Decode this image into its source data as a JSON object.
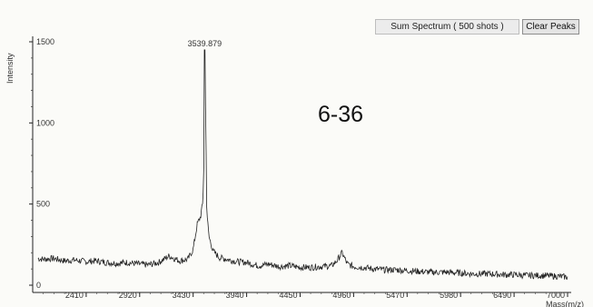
{
  "toolbar": {
    "sum_spectrum_label": "Sum Spectrum ( 500 shots )",
    "clear_peaks_label": "Clear Peaks"
  },
  "annotation": "6-36",
  "chart_data": {
    "type": "line",
    "ylabel": "Intensity",
    "xlabel": "Mass(m/z)",
    "xlim": [
      1900,
      7000
    ],
    "ylim": [
      0,
      1500
    ],
    "x_ticks": [
      "2410",
      "2920",
      "3430",
      "3940",
      "4450",
      "4960",
      "5470",
      "5980",
      "6490",
      "7000"
    ],
    "y_ticks": [
      "0",
      "500",
      "1000",
      "1500"
    ],
    "peak_label": "3539.879",
    "series": [
      {
        "x": [
          1900,
          2000,
          2100,
          2200,
          2300,
          2410,
          2500,
          2600,
          2700,
          2800,
          2920,
          3000,
          3100,
          3200,
          3300,
          3380,
          3430,
          3470,
          3500,
          3520,
          3530,
          3539.879,
          3550,
          3560,
          3580,
          3620,
          3680,
          3750,
          3850,
          3940,
          4050,
          4150,
          4250,
          4350,
          4450,
          4550,
          4650,
          4750,
          4800,
          4850,
          4900,
          4960,
          5050,
          5150,
          5250,
          5350,
          5470,
          5580,
          5700,
          5850,
          5980,
          6100,
          6250,
          6400,
          6490,
          6600,
          6750,
          6900,
          7000
        ],
        "y": [
          170,
          160,
          165,
          150,
          155,
          145,
          150,
          140,
          135,
          140,
          130,
          125,
          140,
          180,
          150,
          160,
          220,
          380,
          420,
          500,
          650,
          1450,
          1020,
          460,
          300,
          210,
          170,
          160,
          145,
          140,
          120,
          130,
          115,
          120,
          110,
          110,
          115,
          120,
          150,
          200,
          130,
          115,
          110,
          100,
          95,
          95,
          90,
          85,
          80,
          80,
          75,
          70,
          70,
          65,
          65,
          60,
          60,
          55,
          50
        ]
      }
    ]
  }
}
